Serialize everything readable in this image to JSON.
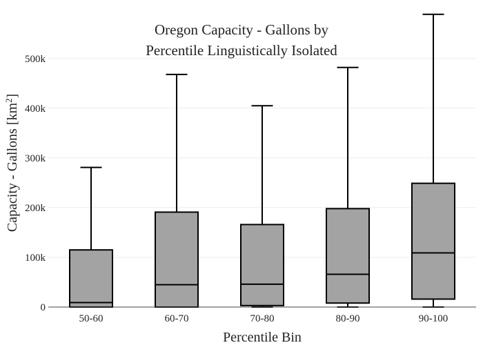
{
  "chart_data": {
    "type": "box",
    "title_lines": [
      "Oregon Capacity - Gallons by",
      "Percentile Linguistically Isolated"
    ],
    "xlabel": "Percentile Bin",
    "ylabel_main": "Capacity - Gallons  [km",
    "ylabel_sup": "2",
    "ylabel_close": "]",
    "ylim": [
      0,
      590000
    ],
    "yticks": [
      0,
      100000,
      200000,
      300000,
      400000,
      500000
    ],
    "ytick_labels": [
      "0",
      "100k",
      "200k",
      "300k",
      "400k",
      "500k"
    ],
    "grid": true,
    "box_color": "#a3a3a3",
    "categories": [
      "50-60",
      "60-70",
      "70-80",
      "80-90",
      "90-100"
    ],
    "boxes": [
      {
        "category": "50-60",
        "min": 0,
        "q1": 0,
        "median": 9000,
        "q3": 115000,
        "max": 281000
      },
      {
        "category": "60-70",
        "min": 0,
        "q1": 0,
        "median": 45000,
        "q3": 191000,
        "max": 468000
      },
      {
        "category": "70-80",
        "min": 0,
        "q1": 3000,
        "median": 46000,
        "q3": 166000,
        "max": 405000
      },
      {
        "category": "80-90",
        "min": 0,
        "q1": 8000,
        "median": 66000,
        "q3": 198000,
        "max": 482000
      },
      {
        "category": "90-100",
        "min": 0,
        "q1": 16000,
        "median": 109000,
        "q3": 249000,
        "max": 589000
      }
    ]
  }
}
